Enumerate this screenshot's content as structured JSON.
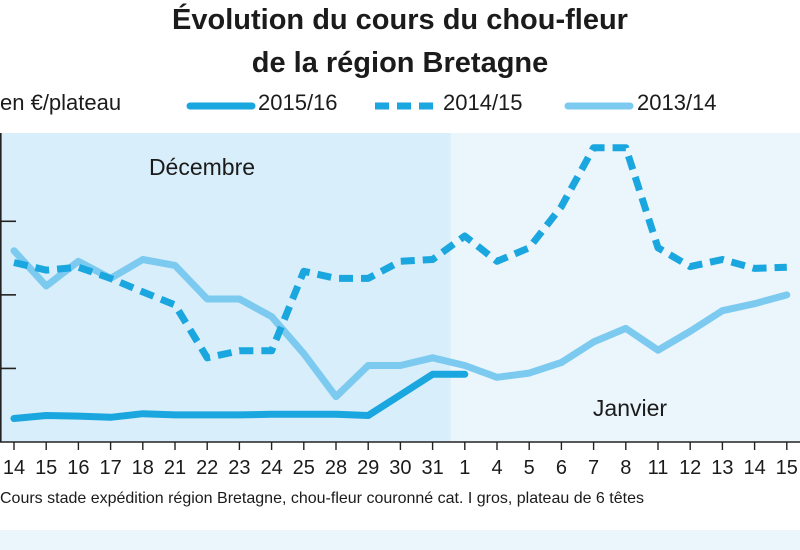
{
  "title_line1": "Évolution du cours du chou-fleur",
  "title_line2": "de la région Bretagne",
  "unit_label": "en €/plateau",
  "month_labels": {
    "december": "Décembre",
    "january": "Janvier"
  },
  "source": "Cours stade expédition région Bretagne, chou-fleur couronné cat. I gros, plateau de 6 têtes",
  "colors": {
    "dark_blue": "#1aa6de",
    "light_blue": "#7ccaf0",
    "panel_december": "#d8eefa",
    "panel_january": "#eaf5fc",
    "axis": "#222222"
  },
  "chart_data": {
    "type": "line",
    "title": "Évolution du cours du chou-fleur de la région Bretagne",
    "ylabel": "en €/plateau",
    "y_tick_labels": false,
    "grid": false,
    "legend_position": "top",
    "categories": [
      "14",
      "15",
      "16",
      "17",
      "18",
      "21",
      "22",
      "23",
      "24",
      "25",
      "28",
      "29",
      "30",
      "31",
      "1",
      "4",
      "5",
      "6",
      "7",
      "8",
      "11",
      "12",
      "13",
      "14",
      "15"
    ],
    "series": [
      {
        "name": "2015/16",
        "style": "solid-dark",
        "values": [
          0.4,
          0.45,
          0.44,
          0.42,
          0.48,
          0.46,
          0.46,
          0.46,
          0.47,
          0.47,
          0.47,
          0.45,
          0.8,
          1.15,
          1.15,
          null,
          null,
          null,
          null,
          null,
          null,
          null,
          null,
          null,
          null
        ]
      },
      {
        "name": "2014/15",
        "style": "dashed",
        "values": [
          3.05,
          2.92,
          2.97,
          2.78,
          2.55,
          2.33,
          1.43,
          1.55,
          1.55,
          2.9,
          2.78,
          2.78,
          3.07,
          3.1,
          3.5,
          3.07,
          3.3,
          4.0,
          5.0,
          5.0,
          3.3,
          2.98,
          3.1,
          2.95,
          2.97
        ]
      },
      {
        "name": "2013/14",
        "style": "solid-light",
        "values": [
          3.25,
          2.65,
          3.07,
          2.78,
          3.1,
          3.0,
          2.43,
          2.43,
          2.13,
          1.5,
          0.77,
          1.3,
          1.3,
          1.43,
          1.3,
          1.1,
          1.17,
          1.35,
          1.7,
          1.93,
          1.56,
          1.88,
          2.23,
          2.35,
          2.5
        ]
      }
    ],
    "ylim": [
      0,
      5.25
    ],
    "periods": [
      {
        "label": "Décembre",
        "from": "14",
        "to": "31"
      },
      {
        "label": "Janvier",
        "from": "1",
        "to": "15"
      }
    ]
  }
}
